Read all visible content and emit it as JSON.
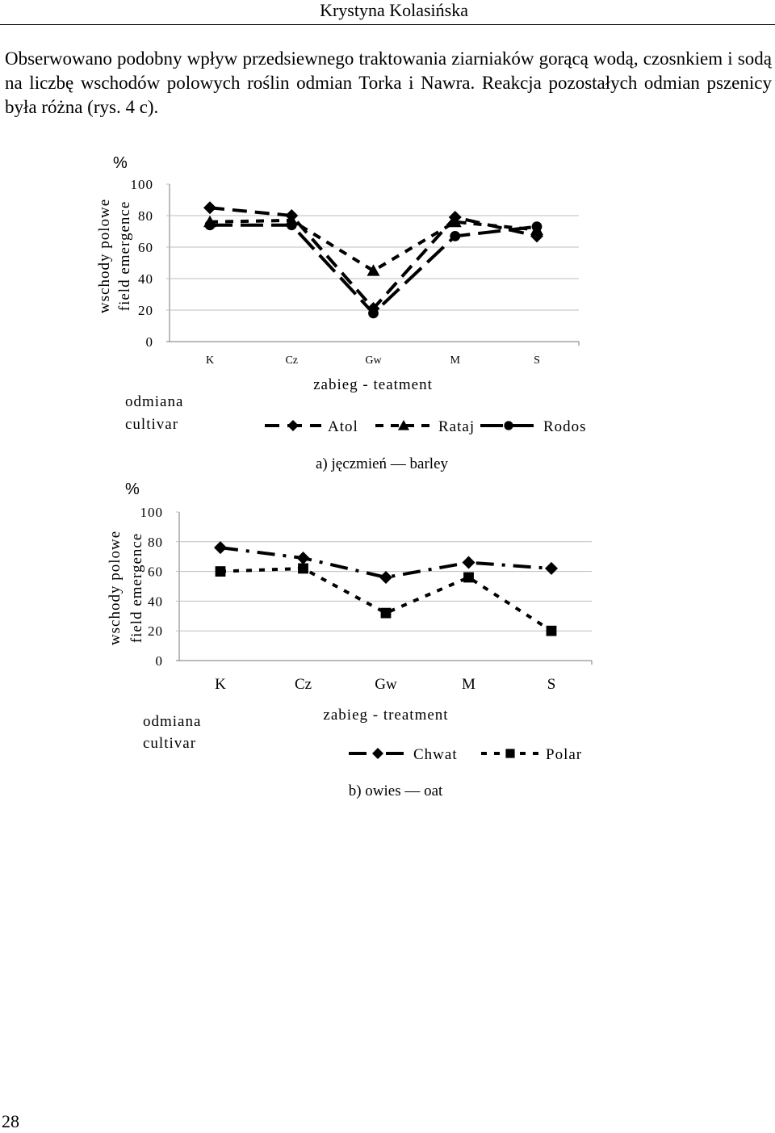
{
  "header": {
    "author": "Krystyna Kolasińska"
  },
  "paragraph": "Obserwowano podobny wpływ przedsiewnego traktowania ziarniaków gorącą wodą, czosnkiem i sodą na liczbę wschodów polowych roślin odmian Torka i Nawra. Reakcja pozostałych odmian pszenicy była różna (rys. 4 c).",
  "page_number": "28",
  "chart_data": [
    {
      "type": "line",
      "percent_label": "%",
      "ylabel": [
        "wschody polowe",
        "field emergence"
      ],
      "xlabel": "zabieg - teatment",
      "legend_title": [
        "odmiana",
        "cultivar"
      ],
      "caption": "a) jęczmień — barley",
      "categories": [
        "K",
        "Cz",
        "Gw",
        "M",
        "S"
      ],
      "ylim": [
        0,
        100
      ],
      "yticks": [
        "0",
        "20",
        "40",
        "60",
        "80",
        "100"
      ],
      "yticks_values": [
        0,
        20,
        40,
        60,
        80,
        100
      ],
      "grid": true,
      "series": [
        {
          "name": "Atol",
          "values": [
            85,
            80,
            21,
            79,
            67
          ],
          "marker": "diamond",
          "dash": "18 10"
        },
        {
          "name": "Rataj",
          "values": [
            76,
            77,
            45,
            76,
            71
          ],
          "marker": "triangle",
          "dash": "10 9"
        },
        {
          "name": "Rodos",
          "values": [
            74,
            74,
            18,
            67,
            73
          ],
          "marker": "circle",
          "dash": "28 10"
        }
      ]
    },
    {
      "type": "line",
      "percent_label": "%",
      "ylabel": [
        "wschody polowe",
        "field emergence"
      ],
      "xlabel": "zabieg - treatment",
      "legend_title": [
        "odmiana",
        "cultivar"
      ],
      "caption": "b) owies — oat",
      "categories": [
        "K",
        "Cz",
        "Gw",
        "M",
        "S"
      ],
      "ylim": [
        0,
        100
      ],
      "yticks": [
        "0",
        "20",
        "40",
        "60",
        "80",
        "100"
      ],
      "yticks_values": [
        0,
        20,
        40,
        60,
        80,
        100
      ],
      "grid": true,
      "series": [
        {
          "name": "Chwat",
          "values": [
            76,
            69,
            56,
            66,
            62
          ],
          "marker": "diamond",
          "dash": "22 10 4 10"
        },
        {
          "name": "Polar",
          "values": [
            60,
            62,
            32,
            56,
            20
          ],
          "marker": "square",
          "dash": "7 9"
        }
      ]
    }
  ]
}
